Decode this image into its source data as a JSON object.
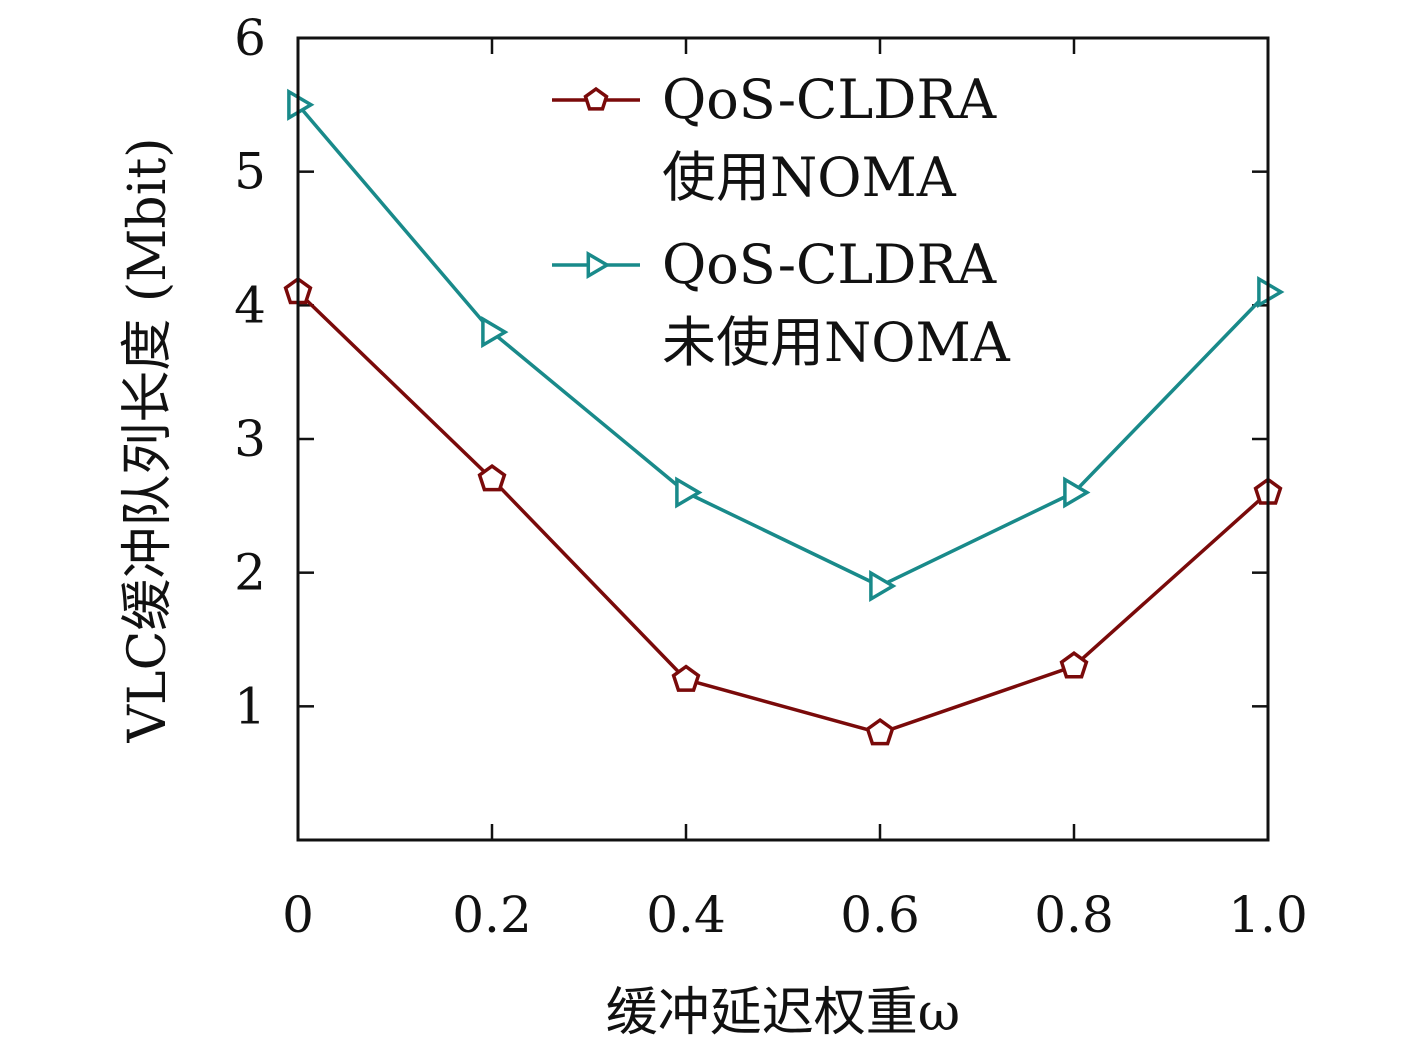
{
  "chart_data": {
    "type": "line",
    "xlabel": "缓冲延迟权重ω",
    "ylabel": "VLC缓冲队列长度 (Mbit)",
    "x": [
      0,
      0.2,
      0.4,
      0.6,
      0.8,
      1.0
    ],
    "x_tick_labels": [
      "0",
      "0.2",
      "0.4",
      "0.6",
      "0.8",
      "1.0"
    ],
    "y_ticks": [
      1,
      2,
      3,
      4,
      5,
      6
    ],
    "y_tick_labels": [
      "1",
      "2",
      "3",
      "4",
      "5",
      "6"
    ],
    "xlim": [
      0,
      1.0
    ],
    "ylim": [
      0,
      6
    ],
    "grid": false,
    "legend_position": "top-right",
    "series": [
      {
        "name": "QoS-CLDRA 使用NOMA",
        "legend_lines": [
          "QoS-CLDRA",
          "使用NOMA"
        ],
        "color": "#7a0a0a",
        "marker": "pentagon",
        "values": [
          4.1,
          2.7,
          1.2,
          0.8,
          1.3,
          2.6
        ]
      },
      {
        "name": "QoS-CLDRA 未使用NOMA",
        "legend_lines": [
          "QoS-CLDRA",
          "未使用NOMA"
        ],
        "color": "#198a8a",
        "marker": "triangle-right",
        "values": [
          5.5,
          3.8,
          2.6,
          1.9,
          2.6,
          4.1
        ]
      }
    ]
  }
}
